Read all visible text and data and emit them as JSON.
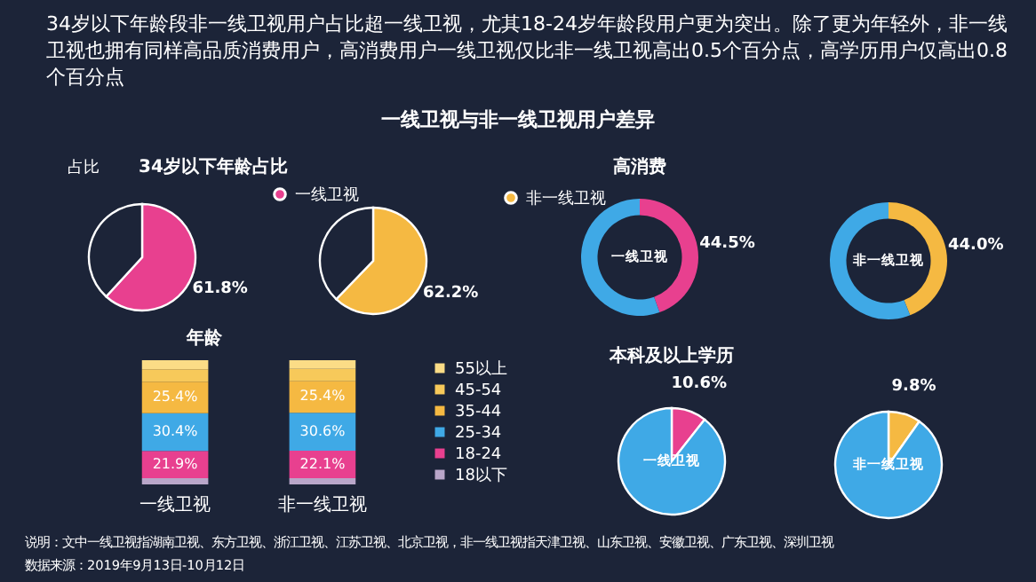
{
  "chart_data": [
    {
      "type": "other",
      "title": "34岁以下年龄段非一线卫视用户占比超一线卫视，尤其18-24岁年龄段用户更为突出。除了更为年轻外，非一线卫视也拥有同样高品质消费用户，高消费用户一线卫视仅比非一线卫视高出0.5个百分点，高学历用户仅高出0.8个百分点",
      "subtitle": "一线卫视与非一线卫视用户差异",
      "annotations": [
        "占比",
        "说明：文中一线卫视指湖南卫视、东方卫视、浙江卫视、江苏卫视、北京卫视，非一线卫视指天津卫视、山东卫视、安徽卫视、广东卫视、深圳卫视",
        "数据来源：2019年9月13日-10月12日"
      ]
    },
    {
      "type": "pie",
      "title": "34岁以下年龄占比",
      "categories": [
        "一线卫视",
        null
      ],
      "values": [
        61.8,
        38.2
      ],
      "colors": [
        "#e8408f",
        "#1c2438"
      ],
      "value_labels": [
        "61.8%",
        null
      ],
      "legend": "right"
    },
    {
      "type": "pie",
      "categories": [
        "非一线卫视",
        null
      ],
      "values": [
        62.2,
        37.8
      ],
      "colors": [
        "#f5b942",
        "#1c2438"
      ],
      "value_labels": [
        "62.2%",
        null
      ],
      "legend": "right"
    },
    {
      "type": "donut",
      "title": "高消费",
      "categories": [
        null,
        null
      ],
      "values": [
        44.5,
        55.5
      ],
      "colors": [
        "#e8408f",
        "#3fa9e6"
      ],
      "value_labels": [
        "44.5%",
        null
      ],
      "annotations": [
        "一线卫视"
      ]
    },
    {
      "type": "donut",
      "categories": [
        null,
        null
      ],
      "values": [
        44.0,
        56.0
      ],
      "colors": [
        "#f5b942",
        "#3fa9e6"
      ],
      "value_labels": [
        "44.0%",
        null
      ],
      "annotations": [
        "非一线卫视"
      ]
    },
    {
      "type": "bar",
      "title": "年龄",
      "stacked": true,
      "tick_labels": "x",
      "categories": [
        "一线卫视",
        "非一线卫视"
      ],
      "legend": "right",
      "series": [
        {
          "name": "18以下",
          "color": "#b9a6c9",
          "values": [
            5,
            5
          ]
        },
        {
          "name": "18-24",
          "color": "#e8408f",
          "values": [
            21.9,
            22.1
          ],
          "value_labels": [
            "21.9%",
            "22.1%"
          ]
        },
        {
          "name": "25-34",
          "color": "#3fa9e6",
          "values": [
            30.4,
            30.6
          ],
          "value_labels": [
            "30.4%",
            "30.6%"
          ]
        },
        {
          "name": "35-44",
          "color": "#f5b942",
          "values": [
            25.4,
            25.4
          ],
          "value_labels": [
            "25.4%",
            "25.4%"
          ]
        },
        {
          "name": "45-54",
          "color": "#f7c95a",
          "values": [
            10,
            10
          ]
        },
        {
          "name": "55以上",
          "color": "#fbdc86",
          "values": [
            7.3,
            6.9
          ]
        }
      ]
    },
    {
      "type": "pie",
      "title": "本科及以上学历",
      "categories": [
        null,
        null
      ],
      "values": [
        10.6,
        89.4
      ],
      "colors": [
        "#e8408f",
        "#3fa9e6"
      ],
      "value_labels": [
        "10.6%",
        null
      ],
      "annotations": [
        "一线卫视"
      ]
    },
    {
      "type": "pie",
      "categories": [
        null,
        null
      ],
      "values": [
        9.8,
        90.2
      ],
      "colors": [
        "#f5b942",
        "#3fa9e6"
      ],
      "value_labels": [
        "9.8%",
        null
      ],
      "annotations": [
        "非一线卫视"
      ]
    }
  ]
}
